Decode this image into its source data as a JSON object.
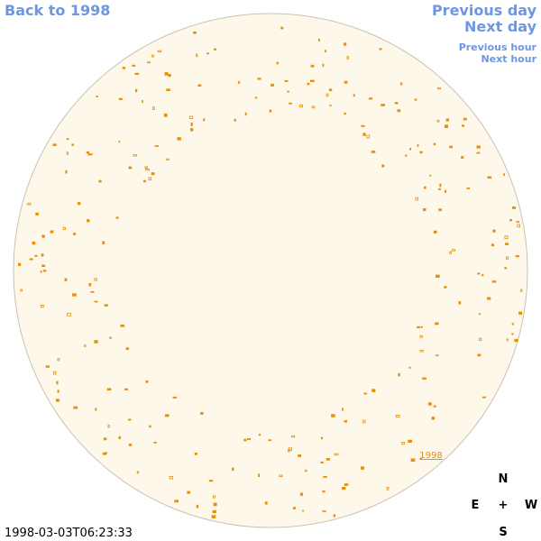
{
  "nav": {
    "back": "Back to 1998",
    "previous_day": "Previous day",
    "next_day": "Next day",
    "previous_hour": "Previous hour",
    "next_hour": "Next hour"
  },
  "disk_label": "1998",
  "timestamp": "1998-03-03T06:23:33",
  "compass": {
    "north": "N",
    "east": "E",
    "center": "+",
    "west": "W",
    "south": "S"
  }
}
